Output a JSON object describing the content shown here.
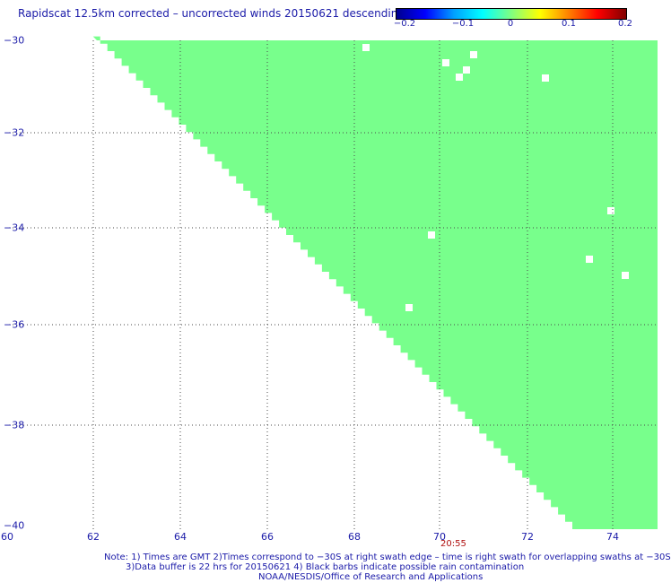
{
  "title": "Rapidscat 12.5km corrected – uncorrected winds 20150621 descending",
  "colorbar": {
    "ticks": [
      "−0.2",
      "−0.1",
      "0",
      "0.1",
      "0.2"
    ],
    "colors": [
      "#00008f",
      "#0000ff",
      "#00a0ff",
      "#00ffff",
      "#80ff80",
      "#ffff00",
      "#ff8000",
      "#ff0000",
      "#800000"
    ]
  },
  "y_axis": {
    "labels": [
      "−30",
      "−32",
      "−34",
      "−36",
      "−38",
      "−40"
    ]
  },
  "x_axis": {
    "labels": [
      "60",
      "62",
      "64",
      "66",
      "68",
      "70",
      "72",
      "74"
    ]
  },
  "swath": {
    "fill_color": "#78ff8c",
    "value": 0
  },
  "timestamp": "20:55",
  "notes": [
    "Note: 1) Times are GMT 2)Times correspond to −30S at right swath edge – time is right swath for overlapping swaths at −30S",
    "3)Data buffer is 22 hrs for 20150621 4) Black barbs indicate possible rain contamination",
    "NOAA/NESDIS/Office of Research and Applications"
  ]
}
